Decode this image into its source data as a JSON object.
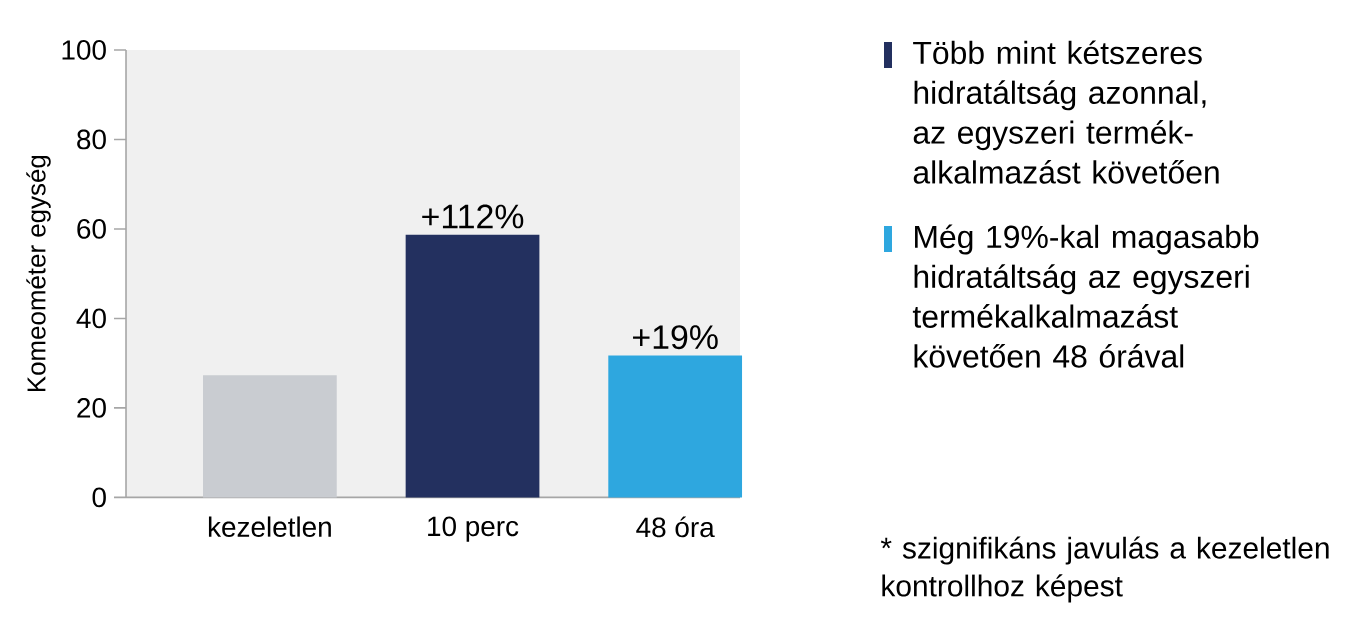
{
  "chart_data": {
    "type": "bar",
    "ylabel": "Komeométer egység",
    "categories": [
      "kezeletlen",
      "10 perc",
      "48 óra"
    ],
    "series": [
      {
        "color": "#c9ccd1",
        "values": [
          27.3,
          null,
          null
        ]
      },
      {
        "name": "Több mint kétszeres hidratáltság azonnal, az egyszeri termék-alkalmazást követően",
        "color": "#23305f",
        "values": [
          null,
          58.7,
          null
        ]
      },
      {
        "name": "Még 19%-kal magasabb hidratáltság az egyszeri termékalkalmazást követően 48 órával",
        "color": "#2ea7df",
        "values": [
          null,
          null,
          31.7
        ]
      }
    ],
    "stacked": true,
    "ylim": [
      0,
      100
    ],
    "yticks": [
      0,
      20,
      40,
      60,
      80,
      100
    ],
    "grid": false,
    "legend": "right",
    "annotations": [
      {
        "text": "+112%",
        "x": "10 perc",
        "y": 58.7
      },
      {
        "text": "+19%",
        "x": "48 óra",
        "y": 31.7
      },
      "* szignifikáns javulás a kezeletlen kontrollhoz képest"
    ]
  }
}
